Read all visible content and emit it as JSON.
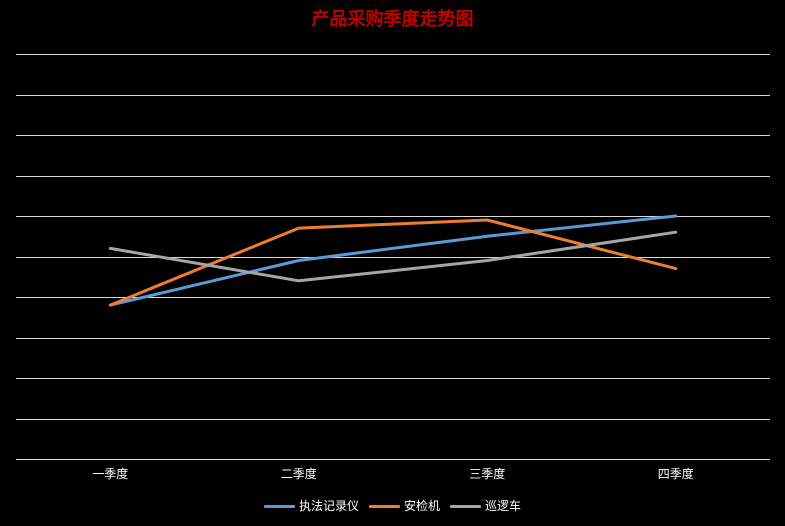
{
  "chart_data": {
    "type": "line",
    "title": "产品采购季度走势图",
    "categories": [
      "一季度",
      "二季度",
      "三季度",
      "四季度"
    ],
    "series": [
      {
        "name": "执法记录仪",
        "color": "#5B9BD5",
        "values": [
          3.8,
          4.9,
          5.5,
          6.0
        ]
      },
      {
        "name": "安检机",
        "color": "#ED7D31",
        "values": [
          3.8,
          5.7,
          5.9,
          4.7
        ]
      },
      {
        "name": "巡逻车",
        "color": "#A5A5A5",
        "values": [
          5.2,
          4.4,
          4.9,
          5.6
        ]
      }
    ],
    "ylim": [
      0,
      10
    ],
    "y_major_unit": 1,
    "grid": true,
    "legend_position": "bottom",
    "background_color": "#000000",
    "title_color": "#C00000",
    "gridline_color": "#D9D9D9",
    "tick_label_color": "#FFFFFF"
  }
}
